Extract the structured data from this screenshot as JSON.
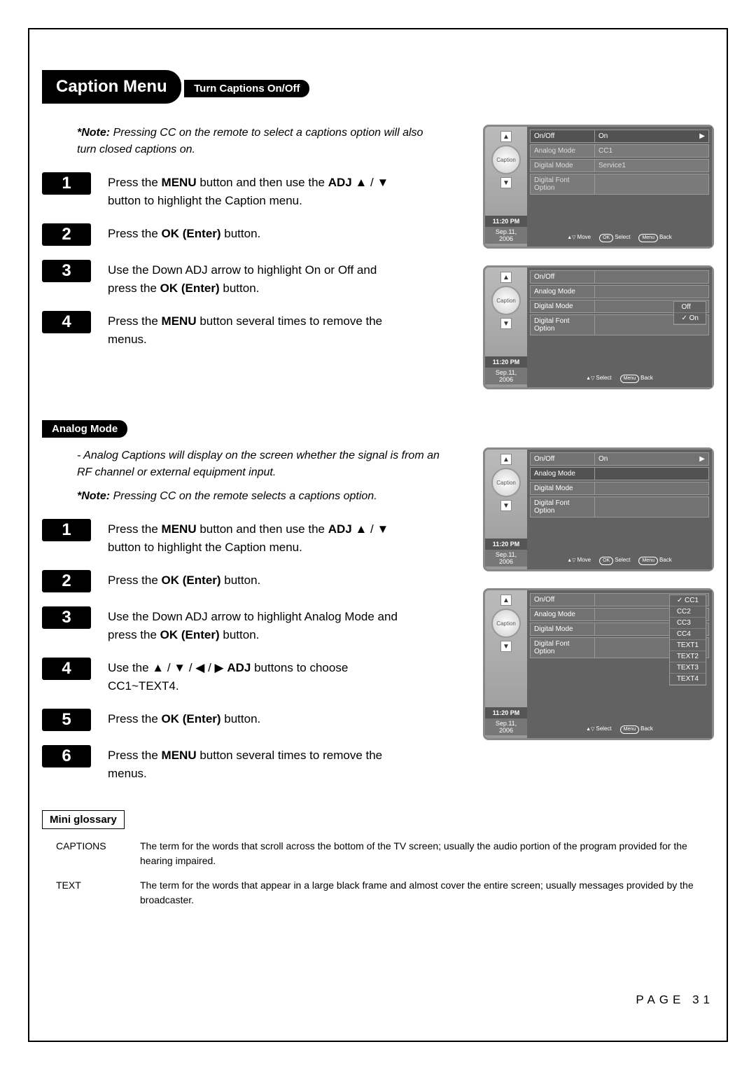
{
  "page_number": "PAGE 31",
  "header": "Caption Menu",
  "sections": {
    "turn_captions": {
      "title": "Turn Captions On/Off",
      "note_label": "*Note:",
      "note_text": "Pressing CC on the remote to select a captions option will also turn closed captions on.",
      "steps": [
        {
          "num": "1",
          "html": "Press the <b>MENU</b> button and then use the <b>ADJ</b> ▲ / ▼ button to highlight the Caption menu."
        },
        {
          "num": "2",
          "html": "Press the <b>OK (Enter)</b> button."
        },
        {
          "num": "3",
          "html": "Use the Down ADJ arrow to highlight On or Off and press the <b>OK (Enter)</b> button."
        },
        {
          "num": "4",
          "html": "Press the <b>MENU</b> button several times to remove the menus."
        }
      ]
    },
    "analog_mode": {
      "title": "Analog Mode",
      "bullet": "- Analog Captions will display on the screen whether the signal is from an RF channel or external equipment input.",
      "note_label": "*Note:",
      "note_text": "Pressing CC on the remote selects a captions option.",
      "steps": [
        {
          "num": "1",
          "html": "Press the <b>MENU</b> button and then use the <b>ADJ</b> ▲ / ▼ button to highlight the Caption menu."
        },
        {
          "num": "2",
          "html": "Press the <b>OK (Enter)</b> button."
        },
        {
          "num": "3",
          "html": "Use the Down ADJ arrow to highlight Analog Mode and press the <b>OK (Enter)</b> button."
        },
        {
          "num": "4",
          "html": "Use the ▲ / ▼ / ◀ / ▶ <b>ADJ</b> buttons to choose CC1~TEXT4."
        },
        {
          "num": "5",
          "html": "Press the <b>OK (Enter)</b> button."
        },
        {
          "num": "6",
          "html": "Press the <b>MENU</b> button several times to remove the menus."
        }
      ]
    }
  },
  "osd": {
    "time": "11:20 PM",
    "date": "Sep.11, 2006",
    "badge": "Caption",
    "rows": {
      "onoff": "On/Off",
      "analog": "Analog Mode",
      "digital": "Digital Mode",
      "font": "Digital Font Option"
    },
    "values": {
      "on": "On",
      "cc1": "CC1",
      "service1": "Service1",
      "off": "Off"
    },
    "footer": {
      "move": "Move",
      "select": "Select",
      "ok": "OK",
      "menu": "Menu",
      "back": "Back"
    },
    "onoff_options": [
      "Off",
      "On"
    ],
    "analog_options": [
      "CC1",
      "CC2",
      "CC3",
      "CC4",
      "TEXT1",
      "TEXT2",
      "TEXT3",
      "TEXT4"
    ]
  },
  "glossary": {
    "title": "Mini glossary",
    "items": [
      {
        "term": "CAPTIONS",
        "def": "The term for the words that scroll across the bottom of the TV screen; usually the audio portion of the program provided for the hearing impaired."
      },
      {
        "term": "TEXT",
        "def": "The term for the words that appear in a large black frame and almost cover the entire screen; usually messages provided by the broadcaster."
      }
    ]
  }
}
